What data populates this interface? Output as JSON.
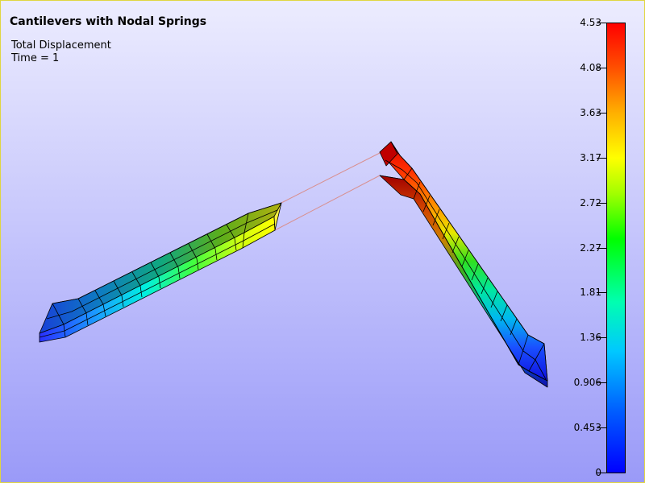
{
  "header": {
    "title": "Cantilevers with Nodal Springs",
    "variable": "Total Displacement",
    "time": "Time = 1"
  },
  "legend": {
    "labels": [
      "4.53",
      "4.08",
      "3.63",
      "3.17",
      "2.72",
      "2.27",
      "1.81",
      "1.36",
      "0.906",
      "0.453",
      "0"
    ],
    "colors": [
      "#ff0000",
      "#ff5000",
      "#ffb000",
      "#ffff00",
      "#a0ff00",
      "#00ff00",
      "#00ffb0",
      "#00c8ff",
      "#0060ff",
      "#0000ff"
    ]
  },
  "scene": {
    "left_beam": "left-cantilever",
    "right_beam": "right-cantilever",
    "springs": "nodal-springs"
  }
}
